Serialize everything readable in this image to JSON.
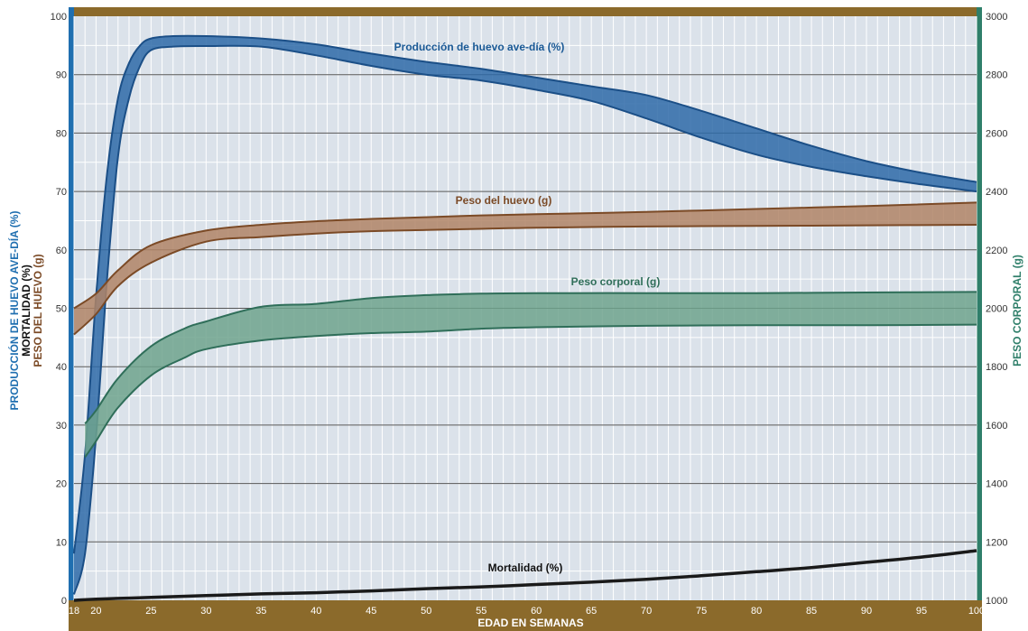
{
  "chart_data": {
    "type": "area",
    "title": "",
    "xlabel": "EDAD EN SEMANAS",
    "ylabel_left_1": "PRODUCCIÓN DE HUEVO AVE-DÍA (%)",
    "ylabel_left_2": "MORTALIDAD (%)",
    "ylabel_left_3": "PESO DEL HUEVO (g)",
    "ylabel_right": "PESO CORPORAL (g)",
    "xlim": [
      18,
      100
    ],
    "ylim_left": [
      0,
      100
    ],
    "ylim_right": [
      1000,
      3000
    ],
    "x_ticks": [
      18,
      20,
      25,
      30,
      35,
      40,
      45,
      50,
      55,
      60,
      65,
      70,
      75,
      80,
      85,
      90,
      95,
      100
    ],
    "y_ticks_left": [
      0,
      10,
      20,
      30,
      40,
      50,
      60,
      70,
      80,
      90,
      100
    ],
    "y_ticks_right": [
      1000,
      1200,
      1400,
      1600,
      1800,
      2000,
      2200,
      2400,
      2600,
      2800,
      3000
    ],
    "grid": true,
    "colors": {
      "production": "#2e6aa8",
      "production_edge": "#1b4f87",
      "egg_weight": "#b08466",
      "egg_weight_edge": "#7b4a26",
      "body_weight": "#6fa38d",
      "body_weight_edge": "#2f6e59",
      "mortality": "#1a1a1a",
      "frame": "#8b6a2b",
      "plot_bg": "#dbe2ea",
      "left_axis": "#1f6fb0",
      "right_axis": "#2f7f6a"
    },
    "series": [
      {
        "name": "Producción de huevo ave-día (%)",
        "axis": "left",
        "x": [
          18,
          19,
          20,
          21,
          22,
          23,
          24,
          25,
          27,
          30,
          35,
          40,
          45,
          50,
          55,
          60,
          65,
          70,
          75,
          80,
          85,
          90,
          95,
          100
        ],
        "upper": [
          8,
          25,
          52,
          73,
          86,
          92,
          95,
          96.2,
          96.6,
          96.6,
          96.2,
          95.2,
          93.6,
          92.2,
          91,
          89.5,
          88,
          86.5,
          83.8,
          80.8,
          77.8,
          75.2,
          73.2,
          71.6
        ],
        "lower": [
          1,
          8,
          28,
          55,
          76,
          86,
          91.5,
          94.2,
          94.8,
          94.9,
          94.8,
          93.3,
          91.5,
          90,
          89,
          87.4,
          85.5,
          82.5,
          79.2,
          76.3,
          74.2,
          72.6,
          71.2,
          70
        ]
      },
      {
        "name": "Peso del huevo (g)",
        "axis": "left",
        "x": [
          18,
          20,
          22,
          25,
          30,
          35,
          40,
          45,
          50,
          55,
          60,
          70,
          80,
          90,
          100
        ],
        "upper": [
          50,
          52.5,
          56.5,
          60.8,
          63.3,
          64.3,
          64.9,
          65.3,
          65.6,
          65.9,
          66.1,
          66.5,
          67,
          67.5,
          68.1
        ],
        "lower": [
          45.5,
          49,
          53.8,
          57.8,
          61.4,
          62.2,
          62.8,
          63.2,
          63.4,
          63.6,
          63.8,
          64,
          64.1,
          64.2,
          64.3
        ]
      },
      {
        "name": "Peso corporal (g)",
        "axis": "right",
        "x": [
          19,
          20,
          22,
          25,
          28,
          30,
          35,
          40,
          45,
          50,
          55,
          60,
          70,
          80,
          90,
          100
        ],
        "upper": [
          1605,
          1650,
          1760,
          1870,
          1930,
          1955,
          2005,
          2015,
          2035,
          2045,
          2050,
          2052,
          2052,
          2052,
          2054,
          2056
        ],
        "lower": [
          1490,
          1545,
          1660,
          1770,
          1830,
          1860,
          1890,
          1905,
          1915,
          1920,
          1930,
          1935,
          1940,
          1942,
          1942,
          1944
        ]
      },
      {
        "name": "Mortalidad (%)",
        "axis": "left",
        "x": [
          18,
          20,
          25,
          30,
          35,
          40,
          45,
          50,
          55,
          60,
          65,
          70,
          75,
          80,
          85,
          90,
          95,
          100
        ],
        "values": [
          0,
          0.2,
          0.5,
          0.8,
          1.1,
          1.3,
          1.6,
          2,
          2.3,
          2.7,
          3.1,
          3.6,
          4.2,
          4.9,
          5.6,
          6.5,
          7.4,
          8.5
        ]
      }
    ]
  }
}
